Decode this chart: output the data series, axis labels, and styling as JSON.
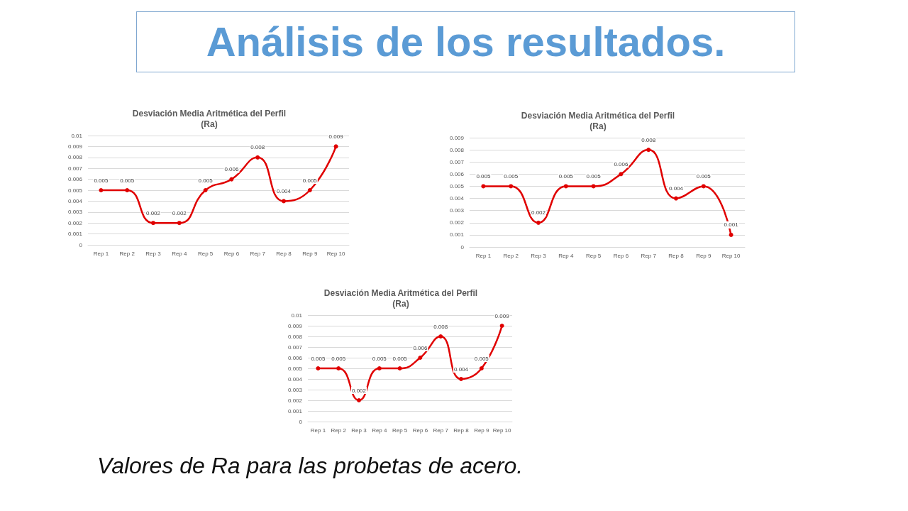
{
  "chart_data": [
    {
      "type": "other",
      "title": "Análisis de los resultados.",
      "annotations": [
        "Valores de Ra para las probetas de acero."
      ]
    },
    {
      "type": "line",
      "title": "Desviación Media Aritmética del Perfil\n(Ra)",
      "categories": [
        "Rep 1",
        "Rep 2",
        "Rep 3",
        "Rep 4",
        "Rep 5",
        "Rep 6",
        "Rep 7",
        "Rep 8",
        "Rep 9",
        "Rep 10"
      ],
      "series": [
        {
          "color": "#e00000",
          "values": [
            0.005,
            0.005,
            0.002,
            0.002,
            0.005,
            0.006,
            0.008,
            0.004,
            0.005,
            0.009
          ]
        }
      ],
      "ylim": [
        0,
        0.01
      ],
      "yticks": [
        0,
        0.001,
        0.002,
        0.003,
        0.004,
        0.005,
        0.006,
        0.007,
        0.008,
        0.009,
        0.01
      ],
      "grid": "y",
      "marker": "circle",
      "line_style": "solid",
      "data_labels": true
    },
    {
      "type": "line",
      "title": "Desviación Media Aritmética del Perfil\n(Ra)",
      "categories": [
        "Rep 1",
        "Rep 2",
        "Rep 3",
        "Rep 4",
        "Rep 5",
        "Rep 6",
        "Rep 7",
        "Rep 8",
        "Rep 9",
        "Rep 10"
      ],
      "series": [
        {
          "color": "#e00000",
          "values": [
            0.005,
            0.005,
            0.002,
            0.005,
            0.005,
            0.006,
            0.008,
            0.004,
            0.005,
            0.001
          ]
        }
      ],
      "ylim": [
        0,
        0.009
      ],
      "yticks": [
        0,
        0.001,
        0.002,
        0.003,
        0.004,
        0.005,
        0.006,
        0.007,
        0.008,
        0.009
      ],
      "grid": "y",
      "marker": "circle",
      "line_style": "solid",
      "data_labels": true
    },
    {
      "type": "line",
      "title": "Desviación Media Aritmética del Perfil\n(Ra)",
      "categories": [
        "Rep 1",
        "Rep 2",
        "Rep 3",
        "Rep 4",
        "Rep 5",
        "Rep 6",
        "Rep 7",
        "Rep 8",
        "Rep 9",
        "Rep 10"
      ],
      "series": [
        {
          "color": "#e00000",
          "values": [
            0.005,
            0.005,
            0.002,
            0.005,
            0.005,
            0.006,
            0.008,
            0.004,
            0.005,
            0.009
          ]
        }
      ],
      "ylim": [
        0,
        0.01
      ],
      "yticks": [
        0,
        0.001,
        0.002,
        0.003,
        0.004,
        0.005,
        0.006,
        0.007,
        0.008,
        0.009,
        0.01
      ],
      "grid": "y",
      "marker": "circle",
      "line_style": "solid",
      "data_labels": true
    }
  ]
}
